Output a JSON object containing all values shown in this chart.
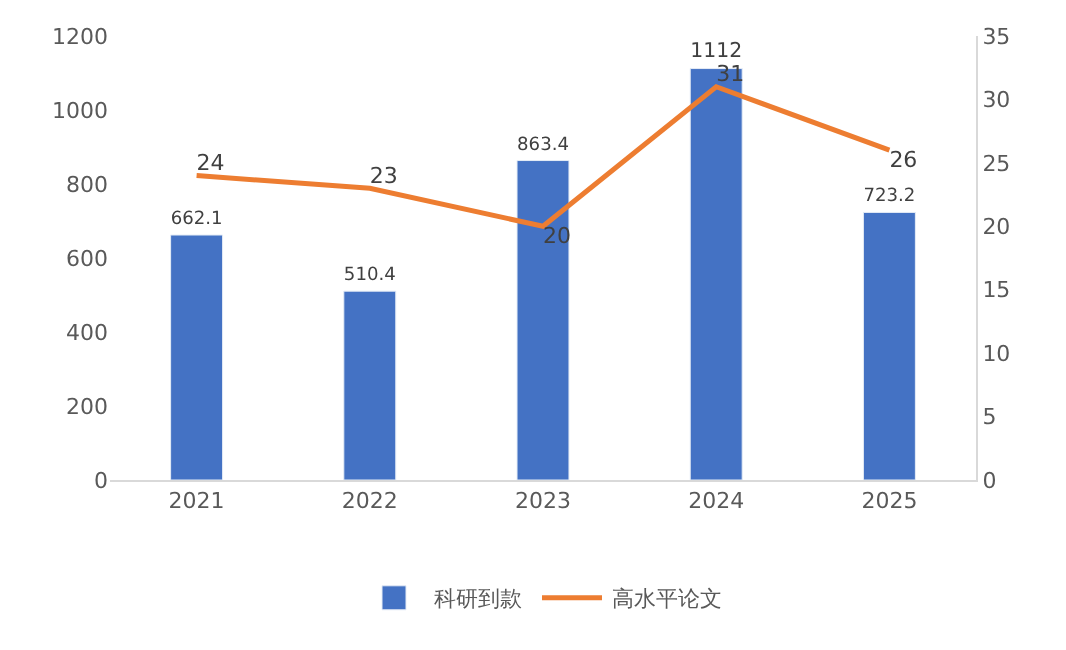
{
  "chart_data": {
    "type": "bar",
    "categories": [
      "2021",
      "2022",
      "2023",
      "2024",
      "2025"
    ],
    "series": [
      {
        "name": "科研到款",
        "color": "#4472c4",
        "values": [
          662.1,
          510.4,
          863.4,
          1112,
          723.2
        ]
      },
      {
        "name": "高水平论文",
        "type": "line",
        "axis": "y2",
        "color": "#ed7d31",
        "values": [
          24,
          23,
          20,
          31,
          26
        ]
      }
    ],
    "ylim": [
      0,
      1200
    ],
    "yticks": [
      0,
      200,
      400,
      600,
      800,
      1000,
      1200
    ],
    "y2lim": [
      0,
      35
    ],
    "y2ticks": [
      0,
      5,
      10,
      15,
      20,
      25,
      30,
      35
    ],
    "data_labels": true,
    "legend": "bottom",
    "marker": "none",
    "line_style": "solid"
  }
}
